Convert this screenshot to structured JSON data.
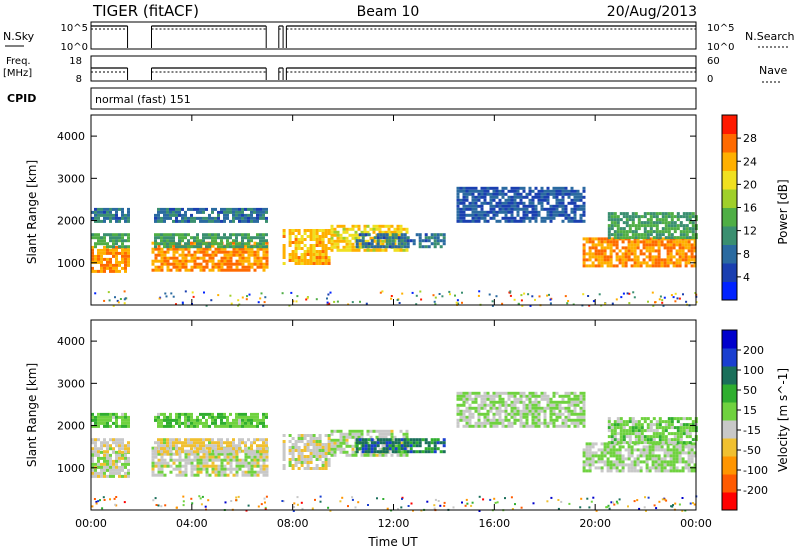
{
  "header": {
    "title": "TIGER (fitACF)",
    "beam": "Beam 10",
    "date": "20/Aug/2013"
  },
  "param_panels": {
    "nsky_label": "N.Sky",
    "nsearch_label": "N.Search",
    "nsky_ticks": [
      "10^5",
      "10^0"
    ],
    "nsearch_ticks": [
      "10^5",
      "10^0"
    ],
    "freq_label_1": "Freq.",
    "freq_label_2": "[MHz]",
    "freq_ticks": [
      "18",
      "8"
    ],
    "nave_label": "Nave",
    "nave_ticks": [
      "60",
      "0"
    ],
    "cpid_label": "CPID",
    "cpid_value": "normal (fast) 151",
    "data_gaps_ut": [
      [
        1.45,
        2.4
      ],
      [
        6.95,
        7.45
      ],
      [
        7.62,
        7.75
      ]
    ]
  },
  "chart_data": [
    {
      "type": "heatmap",
      "panel": "power",
      "ylabel": "Slant Range [km]",
      "yticks": [
        "1000",
        "2000",
        "3000",
        "4000"
      ],
      "ylim": [
        0,
        4500
      ],
      "colorbar": {
        "label": "Power [dB]",
        "ticks": [
          "28",
          "24",
          "20",
          "16",
          "12",
          "8",
          "4"
        ],
        "range": [
          0,
          30
        ]
      },
      "scatter_bands": [
        {
          "t0": 0.0,
          "t1": 1.45,
          "r0": 800,
          "r1": 1400,
          "v": 24
        },
        {
          "t0": 2.4,
          "t1": 6.95,
          "r0": 800,
          "r1": 1500,
          "v": 24
        },
        {
          "t0": 0.0,
          "t1": 6.95,
          "r0": 1400,
          "r1": 1700,
          "v": 12
        },
        {
          "t0": 0.0,
          "t1": 6.95,
          "r0": 2000,
          "r1": 2300,
          "v": 8
        },
        {
          "t0": 7.6,
          "t1": 9.5,
          "r0": 1000,
          "r1": 1800,
          "v": 22
        },
        {
          "t0": 9.5,
          "t1": 12.5,
          "r0": 1300,
          "r1": 1900,
          "v": 20
        },
        {
          "t0": 10.5,
          "t1": 14.0,
          "r0": 1400,
          "r1": 1700,
          "v": 8
        },
        {
          "t0": 14.5,
          "t1": 19.5,
          "r0": 2000,
          "r1": 2800,
          "v": 6
        },
        {
          "t0": 19.5,
          "t1": 24.0,
          "r0": 900,
          "r1": 1600,
          "v": 24
        },
        {
          "t0": 20.5,
          "t1": 24.0,
          "r0": 1600,
          "r1": 2200,
          "v": 12
        }
      ]
    },
    {
      "type": "heatmap",
      "panel": "velocity",
      "xlabel": "Time UT",
      "ylabel": "Slant Range [km]",
      "yticks": [
        "1000",
        "2000",
        "3000",
        "4000"
      ],
      "xticks": [
        "00:00",
        "04:00",
        "08:00",
        "12:00",
        "16:00",
        "20:00",
        "00:00"
      ],
      "xlim": [
        0,
        24
      ],
      "ylim": [
        0,
        4500
      ],
      "colorbar": {
        "label": "Velocity [m s^-1]",
        "ticks": [
          "200",
          "100",
          "50",
          "15",
          "-15",
          "-50",
          "-100",
          "-200"
        ],
        "range": [
          -250,
          250
        ]
      },
      "scatter_bands": [
        {
          "t0": 0.0,
          "t1": 1.45,
          "r0": 800,
          "r1": 1400,
          "v": -20
        },
        {
          "t0": 2.4,
          "t1": 6.95,
          "r0": 800,
          "r1": 1500,
          "v": -20
        },
        {
          "t0": 0.0,
          "t1": 6.95,
          "r0": 1400,
          "r1": 1700,
          "v": -40
        },
        {
          "t0": 0.0,
          "t1": 6.95,
          "r0": 2000,
          "r1": 2300,
          "v": 40
        },
        {
          "t0": 7.6,
          "t1": 9.5,
          "r0": 1000,
          "r1": 1800,
          "v": -30
        },
        {
          "t0": 9.5,
          "t1": 12.5,
          "r0": 1300,
          "r1": 1900,
          "v": -10
        },
        {
          "t0": 10.5,
          "t1": 14.0,
          "r0": 1400,
          "r1": 1700,
          "v": 120
        },
        {
          "t0": 14.5,
          "t1": 19.5,
          "r0": 2000,
          "r1": 2800,
          "v": 0
        },
        {
          "t0": 19.5,
          "t1": 24.0,
          "r0": 900,
          "r1": 1600,
          "v": 0
        },
        {
          "t0": 20.5,
          "t1": 24.0,
          "r0": 1600,
          "r1": 2200,
          "v": 25
        }
      ]
    }
  ],
  "colors": {
    "power_scale": [
      "#0022ff",
      "#1a3fb0",
      "#2a6aa0",
      "#3a8f70",
      "#4fae45",
      "#9fcf2a",
      "#f0e020",
      "#ffb000",
      "#ff6a00",
      "#ff1a00"
    ],
    "velocity_scale": [
      "#ff0000",
      "#ff5a00",
      "#ff9500",
      "#f0c030",
      "#c8c8c8",
      "#6fd23f",
      "#2fae2f",
      "#1a6f5a",
      "#1a3fd0",
      "#0000cc"
    ]
  }
}
